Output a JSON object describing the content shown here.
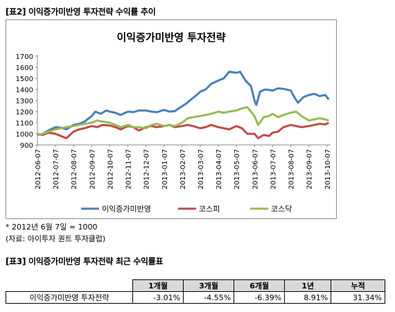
{
  "header": {
    "table2_title": "[표2] 이익증가미반영 투자전략 수익률 추이",
    "table3_title": "[표3] 이익증가미반영 투자전략 최근 수익률표"
  },
  "notes": {
    "base": "* 2012년 6월 7일 = 1000",
    "source": "(자료: 아이투자 퀀트 투자클럽)"
  },
  "colors": {
    "strategy": "#4a7ebb",
    "kospi": "#be4b48",
    "kosdaq": "#98b954"
  },
  "chart_data": {
    "type": "line",
    "title": "이익증가미반영 투자전략",
    "xlabel": "",
    "ylabel": "",
    "ylim": [
      900,
      1700
    ],
    "yticks": [
      900,
      1000,
      1100,
      1200,
      1300,
      1400,
      1500,
      1600,
      1700
    ],
    "grid": false,
    "legend_position": "bottom",
    "x_ticks": [
      "2012-06-07",
      "2012-07-07",
      "2012-08-07",
      "2012-09-07",
      "2012-10-07",
      "2012-11-07",
      "2012-12-07",
      "2013-01-07",
      "2013-02-07",
      "2013-03-07",
      "2013-04-07",
      "2013-05-07",
      "2013-06-07",
      "2013-07-07",
      "2013-08-07",
      "2013-09-07",
      "2013-10-07"
    ],
    "x_range": [
      0,
      16.2
    ],
    "series": [
      {
        "name": "이익증가미반영",
        "color": "#4a7ebb",
        "x": [
          0,
          0.3,
          0.6,
          1,
          1.3,
          1.6,
          2,
          2.3,
          2.6,
          3,
          3.2,
          3.5,
          3.8,
          4,
          4.3,
          4.6,
          5,
          5.3,
          5.6,
          6,
          6.3,
          6.6,
          7,
          7.3,
          7.6,
          8,
          8.2,
          8.5,
          8.8,
          9,
          9.3,
          9.6,
          10,
          10.3,
          10.6,
          11,
          11.2,
          11.5,
          11.8,
          12,
          12.1,
          12.3,
          12.6,
          13,
          13.3,
          13.6,
          14,
          14.2,
          14.4,
          14.7,
          15,
          15.3,
          15.6,
          15.9,
          16.1
        ],
        "y": [
          990,
          1000,
          1030,
          1060,
          1055,
          1040,
          1080,
          1090,
          1110,
          1160,
          1200,
          1180,
          1210,
          1200,
          1190,
          1170,
          1200,
          1195,
          1210,
          1210,
          1200,
          1195,
          1215,
          1200,
          1205,
          1250,
          1270,
          1310,
          1350,
          1380,
          1400,
          1450,
          1480,
          1500,
          1560,
          1550,
          1560,
          1480,
          1430,
          1300,
          1260,
          1380,
          1400,
          1390,
          1410,
          1405,
          1390,
          1330,
          1280,
          1330,
          1350,
          1360,
          1340,
          1350,
          1310
        ]
      },
      {
        "name": "코스피",
        "color": "#be4b48",
        "x": [
          0,
          0.3,
          0.6,
          1,
          1.3,
          1.6,
          2,
          2.3,
          2.6,
          3,
          3.3,
          3.6,
          4,
          4.3,
          4.6,
          5,
          5.3,
          5.6,
          6,
          6.3,
          6.6,
          7,
          7.3,
          7.6,
          8,
          8.3,
          8.6,
          9,
          9.3,
          9.6,
          10,
          10.3,
          10.6,
          11,
          11.3,
          11.6,
          12,
          12.2,
          12.5,
          12.8,
          13,
          13.3,
          13.6,
          14,
          14.3,
          14.6,
          15,
          15.3,
          15.6,
          15.9,
          16.1
        ],
        "y": [
          1000,
          990,
          1010,
          1000,
          980,
          960,
          1020,
          1040,
          1050,
          1070,
          1060,
          1080,
          1075,
          1060,
          1040,
          1070,
          1060,
          1030,
          1060,
          1070,
          1060,
          1070,
          1080,
          1060,
          1070,
          1080,
          1070,
          1050,
          1060,
          1080,
          1060,
          1050,
          1040,
          1070,
          1050,
          1000,
          1000,
          960,
          990,
          980,
          1010,
          1020,
          1060,
          1080,
          1070,
          1060,
          1070,
          1080,
          1090,
          1085,
          1100
        ]
      },
      {
        "name": "코스닥",
        "color": "#98b954",
        "x": [
          0,
          0.3,
          0.6,
          1,
          1.3,
          1.6,
          2,
          2.3,
          2.6,
          3,
          3.3,
          3.6,
          4,
          4.3,
          4.6,
          5,
          5.3,
          5.6,
          6,
          6.3,
          6.6,
          7,
          7.3,
          7.6,
          8,
          8.3,
          8.6,
          9,
          9.3,
          9.6,
          10,
          10.3,
          10.6,
          11,
          11.3,
          11.6,
          12,
          12.2,
          12.5,
          12.8,
          13,
          13.3,
          13.6,
          14,
          14.3,
          14.6,
          15,
          15.3,
          15.6,
          15.9,
          16.1
        ],
        "y": [
          995,
          1000,
          1020,
          1040,
          1050,
          1060,
          1070,
          1080,
          1090,
          1100,
          1120,
          1110,
          1100,
          1080,
          1060,
          1080,
          1060,
          1060,
          1050,
          1080,
          1090,
          1070,
          1080,
          1070,
          1100,
          1140,
          1150,
          1160,
          1170,
          1180,
          1200,
          1190,
          1200,
          1210,
          1230,
          1240,
          1160,
          1080,
          1150,
          1160,
          1180,
          1150,
          1170,
          1190,
          1200,
          1160,
          1120,
          1130,
          1140,
          1130,
          1120
        ]
      }
    ]
  },
  "perf_table": {
    "headers": [
      "1개월",
      "3개월",
      "6개월",
      "1년",
      "누적"
    ],
    "row_label": "이익증가미반영 투자전략",
    "values": [
      "-3.01%",
      "-4.55%",
      "-6.39%",
      "8.91%",
      "31.34%"
    ]
  }
}
